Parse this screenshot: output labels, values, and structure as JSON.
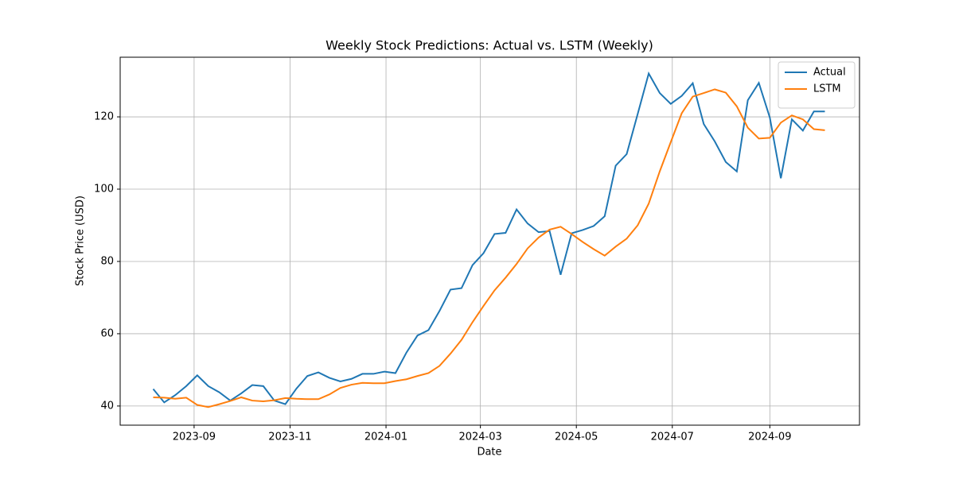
{
  "chart_data": {
    "type": "line",
    "title": "Weekly Stock Predictions: Actual vs. LSTM (Weekly)",
    "x_label": "Date",
    "y_label": "Stock Price (USD)",
    "x": [
      "2023-08-06",
      "2023-08-13",
      "2023-08-20",
      "2023-08-27",
      "2023-09-03",
      "2023-09-10",
      "2023-09-17",
      "2023-09-24",
      "2023-10-01",
      "2023-10-08",
      "2023-10-15",
      "2023-10-22",
      "2023-10-29",
      "2023-11-05",
      "2023-11-12",
      "2023-11-19",
      "2023-11-26",
      "2023-12-03",
      "2023-12-10",
      "2023-12-17",
      "2023-12-24",
      "2023-12-31",
      "2024-01-07",
      "2024-01-14",
      "2024-01-21",
      "2024-01-28",
      "2024-02-04",
      "2024-02-11",
      "2024-02-18",
      "2024-02-25",
      "2024-03-03",
      "2024-03-10",
      "2024-03-17",
      "2024-03-24",
      "2024-03-31",
      "2024-04-07",
      "2024-04-14",
      "2024-04-21",
      "2024-04-28",
      "2024-05-05",
      "2024-05-12",
      "2024-05-19",
      "2024-05-26",
      "2024-06-02",
      "2024-06-09",
      "2024-06-16",
      "2024-06-23",
      "2024-06-30",
      "2024-07-07",
      "2024-07-14",
      "2024-07-21",
      "2024-07-28",
      "2024-08-04",
      "2024-08-11",
      "2024-08-18",
      "2024-08-25",
      "2024-09-01",
      "2024-09-08",
      "2024-09-15",
      "2024-09-22",
      "2024-09-29",
      "2024-10-06"
    ],
    "series": [
      {
        "name": "Actual",
        "color": "#1f77b4",
        "values": [
          44.7,
          41.0,
          43.0,
          45.5,
          48.5,
          45.5,
          43.8,
          41.5,
          43.5,
          45.8,
          45.5,
          41.5,
          40.5,
          44.8,
          48.3,
          49.3,
          47.8,
          46.8,
          47.5,
          48.9,
          48.9,
          49.5,
          49.1,
          54.8,
          59.5,
          61.0,
          66.3,
          72.2,
          72.6,
          79.0,
          82.3,
          87.6,
          87.9,
          94.4,
          90.5,
          88.1,
          88.4,
          76.3,
          87.8,
          88.7,
          89.8,
          92.5,
          106.5,
          109.7,
          120.8,
          132.0,
          126.6,
          123.6,
          125.8,
          129.3,
          118.0,
          113.2,
          107.5,
          104.9,
          124.6,
          129.4,
          119.8,
          103.0,
          119.3,
          116.2,
          121.5,
          121.5
        ]
      },
      {
        "name": "LSTM",
        "color": "#ff7f0e",
        "values": [
          42.4,
          42.3,
          42.0,
          42.3,
          40.3,
          39.7,
          40.5,
          41.4,
          42.4,
          41.5,
          41.3,
          41.6,
          42.2,
          42.0,
          41.9,
          41.9,
          43.2,
          45.0,
          45.9,
          46.4,
          46.3,
          46.3,
          46.9,
          47.4,
          48.3,
          49.1,
          51.1,
          54.5,
          58.3,
          63.2,
          67.7,
          72.0,
          75.5,
          79.3,
          83.6,
          86.6,
          88.8,
          89.6,
          87.6,
          85.4,
          83.4,
          81.6,
          84.1,
          86.3,
          90.0,
          96.0,
          104.9,
          113.0,
          121.0,
          125.6,
          126.6,
          127.6,
          126.7,
          122.9,
          117.0,
          114.0,
          114.2,
          118.4,
          120.4,
          119.3,
          116.6,
          116.3
        ]
      }
    ],
    "xlim": [
      "2023-07-16",
      "2024-10-28"
    ],
    "xticks": [
      {
        "value": "2023-09-01",
        "label": "2023-09"
      },
      {
        "value": "2023-11-01",
        "label": "2023-11"
      },
      {
        "value": "2024-01-01",
        "label": "2024-01"
      },
      {
        "value": "2024-03-01",
        "label": "2024-03"
      },
      {
        "value": "2024-05-01",
        "label": "2024-05"
      },
      {
        "value": "2024-07-01",
        "label": "2024-07"
      },
      {
        "value": "2024-09-01",
        "label": "2024-09"
      }
    ],
    "ylim": [
      34.7,
      136.5
    ],
    "yticks": [
      40,
      60,
      80,
      100,
      120
    ],
    "grid": true,
    "legend": "upper-right"
  }
}
